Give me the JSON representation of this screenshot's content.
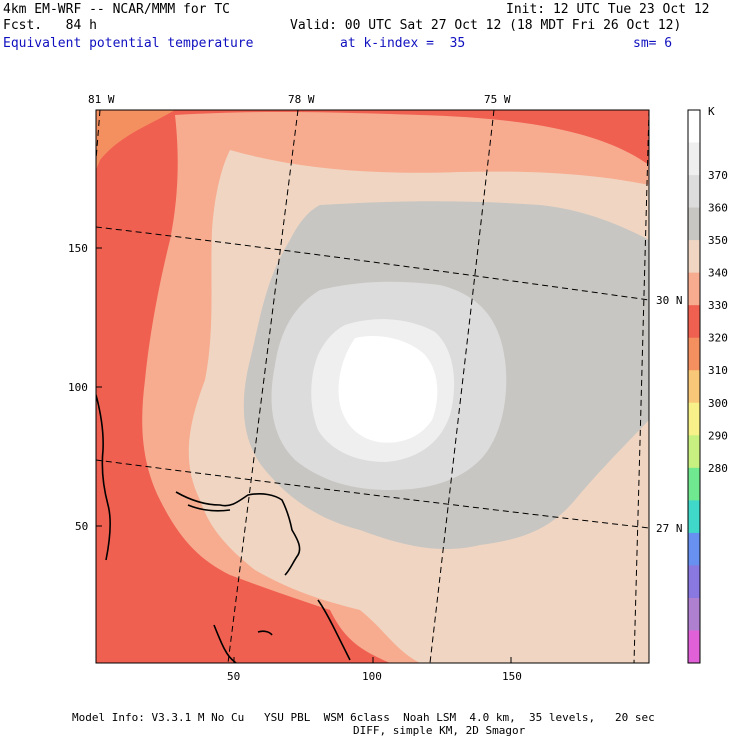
{
  "header": {
    "model_line": "4km EM-WRF -- NCAR/MMM for TC",
    "init_line": "Init: 12 UTC Tue 23 Oct 12",
    "fcst_line": "Fcst.   84 h",
    "valid_line": "Valid: 00 UTC Sat 27 Oct 12 (18 MDT Fri 26 Oct 12)",
    "field_name": "Equivalent potential temperature",
    "level_text": "at k-index =  35",
    "smoothing_text": "sm= 6"
  },
  "map": {
    "top_lon_labels": [
      "81 W",
      "78 W",
      "75 W"
    ],
    "right_lat_labels": [
      "30 N",
      "27 N"
    ],
    "x_ticks": [
      "50",
      "100",
      "150"
    ],
    "y_ticks": [
      "150",
      "100",
      "50"
    ]
  },
  "colorbar": {
    "unit": "K",
    "labels": [
      "370",
      "360",
      "350",
      "340",
      "330",
      "320",
      "310",
      "300",
      "290",
      "280"
    ],
    "colors": [
      "#ffffff",
      "#efefef",
      "#dcdcdc",
      "#c8c6c2",
      "#f0d6c2",
      "#f7ac90",
      "#f06050",
      "#f49060",
      "#f8c878",
      "#f8f088",
      "#c8f080",
      "#70e890",
      "#40d8c8",
      "#6890f0",
      "#8878e0",
      "#b080d0",
      "#e060d8"
    ]
  },
  "footer": {
    "line1": "Model Info: V3.3.1 M No Cu   YSU PBL  WSM 6class  Noah LSM  4.0 km,  35 levels,   20 sec",
    "line2": "DIFF, simple KM, 2D Smagor"
  }
}
